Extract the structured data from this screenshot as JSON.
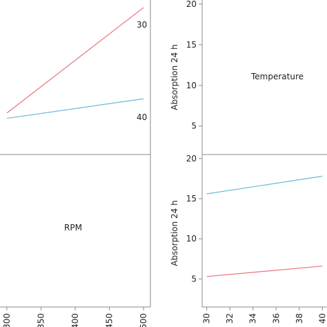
{
  "colors": {
    "series_30": "#e8727c",
    "series_40": "#6ab9d9",
    "frame": "#8a8a8a"
  },
  "chart_data": [
    {
      "panel": "top-left",
      "type": "line",
      "x": [
        300,
        500
      ],
      "series": [
        {
          "name": "30",
          "color": "#e8727c",
          "values": [
            5.5,
            19.5
          ]
        },
        {
          "name": "40",
          "color": "#6ab9d9",
          "values": [
            4.8,
            7.4
          ]
        }
      ],
      "xlim": [
        290,
        510
      ],
      "ylim": [
        0,
        20.5
      ]
    },
    {
      "panel": "top-right",
      "type": "line",
      "text": "Temperature",
      "ylabel": "Absorption 24 h",
      "yticks": [
        5,
        10,
        15,
        20
      ],
      "ylim": [
        1.5,
        20.5
      ]
    },
    {
      "panel": "bottom-left",
      "type": "line",
      "text": "RPM",
      "xticks": [
        300,
        350,
        400,
        450,
        500
      ],
      "xticklabels": [
        "300",
        "350",
        "400",
        "450",
        "500"
      ],
      "xlim": [
        290,
        510
      ]
    },
    {
      "panel": "bottom-right",
      "type": "line",
      "ylabel": "Absorption 24 h",
      "yticks": [
        5,
        10,
        15,
        20
      ],
      "ylim": [
        1.5,
        20.5
      ],
      "xticks": [
        30,
        32,
        34,
        36,
        38,
        40
      ],
      "xticklabels": [
        "30",
        "32",
        "34",
        "36",
        "38",
        "40"
      ],
      "xlim": [
        29.6,
        40.4
      ],
      "series": [
        {
          "color": "#6ab9d9",
          "x": [
            30,
            40
          ],
          "values": [
            15.6,
            17.8
          ]
        },
        {
          "color": "#e8727c",
          "x": [
            30,
            40
          ],
          "values": [
            5.3,
            6.6
          ]
        }
      ]
    }
  ]
}
